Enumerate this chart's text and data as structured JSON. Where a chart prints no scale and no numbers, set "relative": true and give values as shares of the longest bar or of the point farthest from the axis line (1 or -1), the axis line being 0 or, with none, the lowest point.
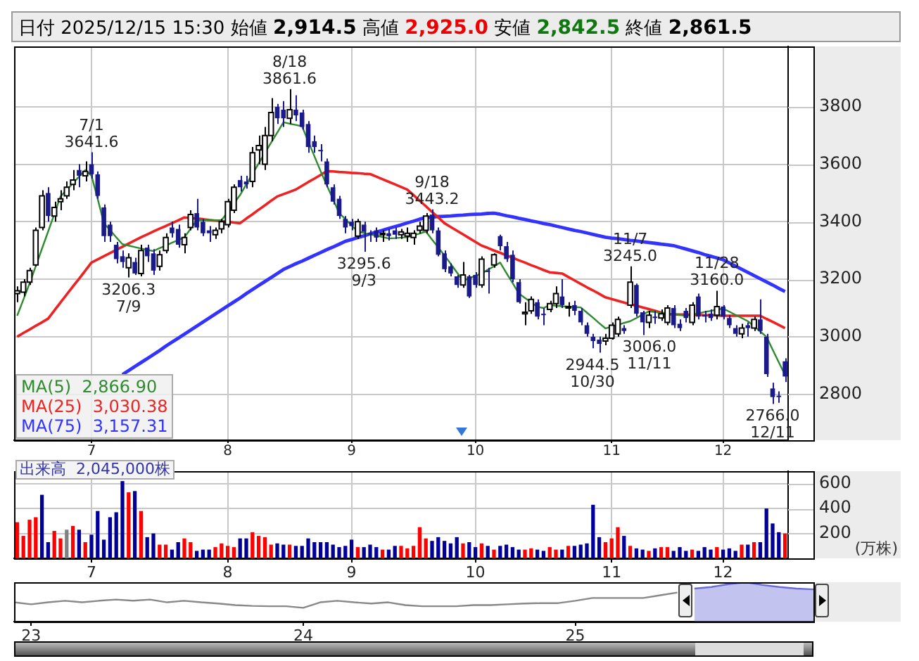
{
  "chart_data": [
    {
      "type": "candlestick",
      "title": "日付 2025/12/15 15:30 始値 2,914.5 高値 2,925.0 安値 2,842.5 終値 2,861.5",
      "categories": [
        null,
        null,
        null,
        null,
        null,
        null,
        null,
        null,
        null,
        null,
        null,
        null,
        "7",
        null,
        null,
        null,
        null,
        null,
        null,
        null,
        null,
        null,
        null,
        null,
        null,
        null,
        null,
        null,
        null,
        null,
        null,
        null,
        null,
        null,
        "8",
        null,
        null,
        null,
        null,
        null,
        null,
        null,
        null,
        null,
        null,
        null,
        null,
        null,
        null,
        null,
        null,
        null,
        null,
        null,
        "9",
        null,
        null,
        null,
        null,
        null,
        null,
        null,
        null,
        null,
        null,
        null,
        null,
        null,
        null,
        null,
        null,
        null,
        null,
        null,
        "10",
        null,
        null,
        null,
        null,
        null,
        null,
        null,
        null,
        null,
        null,
        null,
        null,
        null,
        null,
        null,
        null,
        null,
        null,
        null,
        null,
        null,
        "11",
        null,
        null,
        null,
        null,
        null,
        null,
        null,
        null,
        null,
        null,
        null,
        null,
        null,
        null,
        null,
        null,
        null,
        "12",
        null,
        null,
        null,
        null,
        null,
        null,
        null,
        null,
        null,
        null
      ],
      "ohlc": [
        [
          3150,
          3175,
          3120,
          3160
        ],
        [
          3155,
          3200,
          3140,
          3190
        ],
        [
          3190,
          3240,
          3180,
          3230
        ],
        [
          3250,
          3380,
          3245,
          3370
        ],
        [
          3380,
          3510,
          3370,
          3490
        ],
        [
          3500,
          3520,
          3400,
          3420
        ],
        [
          3420,
          3470,
          3400,
          3450
        ],
        [
          3470,
          3510,
          3440,
          3480
        ],
        [
          3490,
          3540,
          3480,
          3520
        ],
        [
          3530,
          3580,
          3510,
          3545
        ],
        [
          3580,
          3600,
          3520,
          3560
        ],
        [
          3560,
          3610,
          3540,
          3575
        ],
        [
          3600,
          3641.6,
          3550,
          3565
        ],
        [
          3565,
          3575,
          3480,
          3490
        ],
        [
          3450,
          3460,
          3330,
          3350
        ],
        [
          3390,
          3400,
          3330,
          3350
        ],
        [
          3320,
          3330,
          3255,
          3270
        ],
        [
          3280,
          3300,
          3240,
          3260
        ],
        [
          3240,
          3290,
          3206.3,
          3275
        ],
        [
          3260,
          3275,
          3215,
          3220
        ],
        [
          3220,
          3320,
          3210,
          3300
        ],
        [
          3310,
          3320,
          3260,
          3280
        ],
        [
          3290,
          3305,
          3215,
          3230
        ],
        [
          3245,
          3300,
          3230,
          3285
        ],
        [
          3300,
          3360,
          3290,
          3345
        ],
        [
          3380,
          3400,
          3345,
          3360
        ],
        [
          3375,
          3390,
          3310,
          3320
        ],
        [
          3320,
          3360,
          3290,
          3345
        ],
        [
          3380,
          3440,
          3370,
          3425
        ],
        [
          3430,
          3480,
          3370,
          3380
        ],
        [
          3400,
          3410,
          3350,
          3360
        ],
        [
          3370,
          3385,
          3330,
          3360
        ],
        [
          3355,
          3380,
          3340,
          3370
        ],
        [
          3375,
          3410,
          3360,
          3400
        ],
        [
          3390,
          3480,
          3380,
          3470
        ],
        [
          3440,
          3530,
          3430,
          3520
        ],
        [
          3545,
          3560,
          3505,
          3520
        ],
        [
          3540,
          3560,
          3515,
          3530
        ],
        [
          3540,
          3660,
          3520,
          3640
        ],
        [
          3650,
          3700,
          3600,
          3665
        ],
        [
          3600,
          3730,
          3580,
          3700
        ],
        [
          3700,
          3830,
          3680,
          3780
        ],
        [
          3800,
          3810,
          3740,
          3760
        ],
        [
          3790,
          3820,
          3730,
          3760
        ],
        [
          3760,
          3861.6,
          3740,
          3790
        ],
        [
          3790,
          3840,
          3750,
          3770
        ],
        [
          3780,
          3790,
          3720,
          3730
        ],
        [
          3740,
          3750,
          3640,
          3660
        ],
        [
          3680,
          3700,
          3640,
          3660
        ],
        [
          3650,
          3670,
          3610,
          3645
        ],
        [
          3610,
          3620,
          3520,
          3530
        ],
        [
          3520,
          3530,
          3460,
          3470
        ],
        [
          3480,
          3490,
          3410,
          3420
        ],
        [
          3410,
          3420,
          3360,
          3380
        ],
        [
          3400,
          3410,
          3370,
          3385
        ],
        [
          3350,
          3410,
          3340,
          3400
        ],
        [
          3390,
          3400,
          3295.6,
          3365
        ],
        [
          3360,
          3370,
          3330,
          3355
        ],
        [
          3370,
          3380,
          3330,
          3345
        ],
        [
          3355,
          3370,
          3330,
          3355
        ],
        [
          3360,
          3375,
          3335,
          3350
        ],
        [
          3370,
          3380,
          3340,
          3355
        ],
        [
          3355,
          3375,
          3340,
          3365
        ],
        [
          3350,
          3380,
          3330,
          3360
        ],
        [
          3345,
          3370,
          3320,
          3360
        ],
        [
          3370,
          3400,
          3360,
          3385
        ],
        [
          3370,
          3430,
          3360,
          3420
        ],
        [
          3425,
          3443.2,
          3360,
          3370
        ],
        [
          3370,
          3380,
          3280,
          3285
        ],
        [
          3290,
          3300,
          3225,
          3235
        ],
        [
          3245,
          3255,
          3210,
          3220
        ],
        [
          3210,
          3215,
          3170,
          3180
        ],
        [
          3180,
          3260,
          3170,
          3215
        ],
        [
          3210,
          3215,
          3135,
          3140
        ],
        [
          3215,
          3225,
          3170,
          3180
        ],
        [
          3180,
          3280,
          3170,
          3270
        ],
        [
          3230,
          3240,
          3150,
          3225
        ],
        [
          3250,
          3290,
          3240,
          3285
        ],
        [
          3350,
          3355,
          3300,
          3315
        ],
        [
          3315,
          3330,
          3260,
          3270
        ],
        [
          3285,
          3300,
          3190,
          3200
        ],
        [
          3190,
          3200,
          3115,
          3120
        ],
        [
          3080,
          3120,
          3040,
          3085
        ],
        [
          3090,
          3140,
          3080,
          3130
        ],
        [
          3120,
          3130,
          3060,
          3070
        ],
        [
          3080,
          3100,
          3040,
          3075
        ],
        [
          3095,
          3125,
          3085,
          3115
        ],
        [
          3115,
          3175,
          3100,
          3150
        ],
        [
          3140,
          3200,
          3100,
          3110
        ],
        [
          3100,
          3120,
          3070,
          3100
        ],
        [
          3110,
          3125,
          3075,
          3090
        ],
        [
          3090,
          3100,
          3040,
          3050
        ],
        [
          3040,
          3050,
          3000,
          3010
        ],
        [
          3000,
          3010,
          2960,
          2985
        ],
        [
          2990,
          3000,
          2944.5,
          2975
        ],
        [
          2985,
          3010,
          2970,
          2995
        ],
        [
          2995,
          3050,
          2990,
          3040
        ],
        [
          3010,
          3070,
          3000,
          3060
        ],
        [
          3030,
          3040,
          3010,
          3020
        ],
        [
          3110,
          3245,
          3100,
          3190
        ],
        [
          3180,
          3185,
          3070,
          3080
        ],
        [
          3085,
          3090,
          3006,
          3050
        ],
        [
          3050,
          3090,
          3030,
          3075
        ],
        [
          3070,
          3090,
          3045,
          3065
        ],
        [
          3065,
          3095,
          3055,
          3080
        ],
        [
          3050,
          3110,
          3040,
          3100
        ],
        [
          3100,
          3110,
          3030,
          3040
        ],
        [
          3045,
          3060,
          3020,
          3030
        ],
        [
          3090,
          3100,
          3050,
          3065
        ],
        [
          3050,
          3120,
          3040,
          3110
        ],
        [
          3140,
          3150,
          3060,
          3070
        ],
        [
          3075,
          3090,
          3050,
          3070
        ],
        [
          3080,
          3095,
          3055,
          3065
        ],
        [
          3075,
          3160,
          3060,
          3105
        ],
        [
          3105,
          3110,
          3060,
          3070
        ],
        [
          3065,
          3075,
          3030,
          3040
        ],
        [
          3030,
          3040,
          3000,
          3010
        ],
        [
          3010,
          3045,
          2995,
          3030
        ],
        [
          3040,
          3050,
          3000,
          3030
        ],
        [
          3030,
          3070,
          3020,
          3060
        ],
        [
          3060,
          3130,
          3010,
          3020
        ],
        [
          3000,
          3010,
          2860,
          2870
        ],
        [
          2820,
          2840,
          2766,
          2790
        ],
        [
          2795,
          2810,
          2770,
          2790
        ],
        [
          2914.5,
          2925,
          2842.5,
          2861.5
        ]
      ],
      "series": [
        {
          "type": "line",
          "name": "MA(5)  2,866.90",
          "color": "#2e8b2e",
          "values": [
            3073,
            3129,
            3185,
            3245,
            3306,
            3366,
            3427,
            3488,
            3511,
            3534,
            3557,
            3580,
            3560,
            3480,
            3395,
            3371,
            3346,
            3322,
            3317,
            3312,
            3307,
            3302,
            3298,
            3308,
            3317,
            3327,
            3336,
            3346,
            3375,
            3405,
            3405,
            3405,
            3405,
            3405,
            3434,
            3464,
            3493,
            3530,
            3566,
            3603,
            3639,
            3675,
            3710,
            3746,
            3741,
            3737,
            3732,
            3680,
            3628,
            3576,
            3527,
            3479,
            3430,
            3409,
            3387,
            3366,
            3361,
            3356,
            3352,
            3347,
            3342,
            3343,
            3345,
            3346,
            3353,
            3359,
            3366,
            3338,
            3311,
            3283,
            3254,
            3224,
            3195,
            3203,
            3212,
            3220,
            3233,
            3245,
            3258,
            3222,
            3187,
            3151,
            3135,
            3120,
            3104,
            3100,
            3110,
            3108,
            3106,
            3105,
            3103,
            3102,
            3084,
            3066,
            3047,
            3029,
            3035,
            3041,
            3048,
            3054,
            3065,
            3077,
            3088,
            3086,
            3083,
            3081,
            3078,
            3076,
            3073,
            3077,
            3081,
            3086,
            3090,
            3094,
            3098,
            3087,
            3076,
            3065,
            3054,
            3036,
            3018,
            3000,
            2955,
            2911,
            2867
          ]
        },
        {
          "type": "line",
          "name": "MA(25)  3,030.38",
          "color": "#ee2222",
          "values": [
            3000,
            3013,
            3025,
            3038,
            3050,
            3063,
            3091,
            3119,
            3147,
            3175,
            3202,
            3230,
            3258,
            3269,
            3280,
            3291,
            3302,
            3313,
            3324,
            3335,
            3346,
            3356,
            3366,
            3376,
            3385,
            3395,
            3405,
            3415,
            3413,
            3411,
            3409,
            3406,
            3404,
            3402,
            3400,
            3397,
            3395,
            3411,
            3426,
            3442,
            3457,
            3473,
            3488,
            3496,
            3504,
            3512,
            3525,
            3538,
            3550,
            3563,
            3576,
            3575,
            3573,
            3572,
            3570,
            3569,
            3567,
            3566,
            3557,
            3548,
            3539,
            3530,
            3521,
            3512,
            3493,
            3473,
            3454,
            3434,
            3415,
            3395,
            3382,
            3369,
            3356,
            3343,
            3330,
            3317,
            3309,
            3300,
            3292,
            3283,
            3275,
            3266,
            3258,
            3249,
            3241,
            3232,
            3224,
            3222,
            3220,
            3208,
            3196,
            3184,
            3172,
            3161,
            3149,
            3137,
            3131,
            3125,
            3119,
            3113,
            3108,
            3102,
            3096,
            3090,
            3084,
            3078,
            3078,
            3077,
            3077,
            3076,
            3076,
            3075,
            3075,
            3074,
            3073,
            3073,
            3073,
            3073,
            3073,
            3073,
            3073,
            3062,
            3052,
            3041,
            3030
          ]
        },
        {
          "type": "line",
          "name": "MA(75)  3,157.31",
          "color": "#3333ff",
          "values": [
            null,
            null,
            null,
            null,
            null,
            null,
            null,
            null,
            null,
            null,
            null,
            null,
            null,
            null,
            null,
            null,
            null,
            2868,
            2882,
            2896,
            2910,
            2924,
            2938,
            2952,
            2967,
            2981,
            2995,
            3009,
            3023,
            3037,
            3051,
            3065,
            3079,
            3093,
            3107,
            3121,
            3135,
            3150,
            3164,
            3178,
            3192,
            3206,
            3220,
            3234,
            3244,
            3254,
            3263,
            3273,
            3283,
            3293,
            3303,
            3312,
            3322,
            3332,
            3338,
            3345,
            3351,
            3358,
            3364,
            3370,
            3377,
            3383,
            3389,
            3396,
            3402,
            3409,
            3415,
            3416,
            3418,
            3419,
            3420,
            3422,
            3423,
            3425,
            3426,
            3427,
            3429,
            3430,
            3426,
            3421,
            3417,
            3412,
            3408,
            3403,
            3399,
            3394,
            3390,
            3385,
            3380,
            3375,
            3370,
            3366,
            3361,
            3356,
            3351,
            3346,
            3343,
            3341,
            3338,
            3335,
            3333,
            3330,
            3328,
            3325,
            3322,
            3320,
            3317,
            3311,
            3305,
            3299,
            3293,
            3286,
            3280,
            3274,
            3268,
            3257,
            3246,
            3235,
            3224,
            3213,
            3202,
            3191,
            3180,
            3168,
            3157
          ]
        }
      ],
      "ylim": [
        2640,
        4010
      ],
      "yticks": [
        2800,
        3000,
        3200,
        3400,
        3600,
        3800
      ],
      "grid": true,
      "legend": "bottom left",
      "annotations": [
        {
          "text": "7/1\n3641.6",
          "y": 3641.6
        },
        {
          "text": "3206.3\n7/9",
          "y": 3206.3
        },
        {
          "text": "8/18\n3861.6",
          "y": 3861.6
        },
        {
          "text": "3295.6\n9/3",
          "y": 3295.6
        },
        {
          "text": "9/18\n3443.2",
          "y": 3443.2
        },
        {
          "text": "2944.5\n10/30",
          "y": 2944.5
        },
        {
          "text": "11/7\n3245.0",
          "y": 3245
        },
        {
          "text": "3006.0\n11/11",
          "y": 3006
        },
        {
          "text": "11/28\n3160.0",
          "y": 3160
        },
        {
          "text": "2766.0\n12/11",
          "y": 2766
        }
      ]
    },
    {
      "type": "bar",
      "title": "出来高  2,045,000株",
      "ylabel": "(万株)",
      "categories": [
        null,
        null,
        null,
        null,
        null,
        null,
        null,
        null,
        null,
        null,
        null,
        null,
        "7",
        null,
        null,
        null,
        null,
        null,
        null,
        null,
        null,
        null,
        null,
        null,
        null,
        null,
        null,
        null,
        null,
        null,
        null,
        null,
        null,
        null,
        "8",
        null,
        null,
        null,
        null,
        null,
        null,
        null,
        null,
        null,
        null,
        null,
        null,
        null,
        null,
        null,
        null,
        null,
        null,
        null,
        "9",
        null,
        null,
        null,
        null,
        null,
        null,
        null,
        null,
        null,
        null,
        null,
        null,
        null,
        null,
        null,
        null,
        null,
        null,
        null,
        "10",
        null,
        null,
        null,
        null,
        null,
        null,
        null,
        null,
        null,
        null,
        null,
        null,
        null,
        null,
        null,
        null,
        null,
        null,
        null,
        null,
        null,
        "11",
        null,
        null,
        null,
        null,
        null,
        null,
        null,
        null,
        null,
        null,
        null,
        null,
        null,
        null,
        null,
        null,
        null,
        "12",
        null,
        null,
        null,
        null,
        null,
        null,
        null,
        null,
        null,
        null
      ],
      "values": [
        290,
        180,
        310,
        330,
        510,
        130,
        220,
        160,
        230,
        260,
        230,
        130,
        190,
        380,
        150,
        330,
        370,
        620,
        530,
        540,
        380,
        170,
        200,
        110,
        110,
        70,
        130,
        160,
        130,
        60,
        70,
        70,
        90,
        120,
        100,
        90,
        160,
        160,
        210,
        180,
        170,
        110,
        120,
        110,
        110,
        100,
        100,
        160,
        130,
        130,
        130,
        110,
        90,
        100,
        150,
        90,
        90,
        110,
        90,
        70,
        70,
        100,
        100,
        80,
        100,
        250,
        160,
        140,
        170,
        140,
        120,
        170,
        120,
        130,
        90,
        120,
        100,
        70,
        100,
        110,
        90,
        70,
        70,
        80,
        70,
        60,
        90,
        70,
        70,
        100,
        100,
        110,
        120,
        430,
        170,
        130,
        160,
        250,
        180,
        100,
        80,
        70,
        60,
        80,
        90,
        90,
        60,
        90,
        60,
        70,
        60,
        90,
        70,
        90,
        70,
        80,
        60,
        110,
        110,
        130,
        130,
        400,
        280,
        210,
        200
      ],
      "colors": [
        "#ff0000",
        "#ff0000",
        "#ff0000",
        "#ff0000",
        "#000099",
        "#000099",
        "#ff0000",
        "#ff0000",
        "#808080",
        "#ff0000",
        "#000099",
        "#ff0000",
        "#000099",
        "#000099",
        "#000099",
        "#000099",
        "#000099",
        "#000099",
        "#ff0000",
        "#000099",
        "#ff0000",
        "#000099",
        "#000099",
        "#ff0000",
        "#ff0000",
        "#000099",
        "#000099",
        "#ff0000",
        "#ff0000",
        "#000099",
        "#000099",
        "#000099",
        "#ff0000",
        "#ff0000",
        "#ff0000",
        "#ff0000",
        "#000099",
        "#000099",
        "#ff0000",
        "#ff0000",
        "#ff0000",
        "#ff0000",
        "#000099",
        "#000099",
        "#ff0000",
        "#000099",
        "#000099",
        "#000099",
        "#000099",
        "#000099",
        "#000099",
        "#000099",
        "#000099",
        "#000099",
        "#000099",
        "#ff0000",
        "#000099",
        "#000099",
        "#000099",
        "#ff0000",
        "#000099",
        "#000099",
        "#ff0000",
        "#ff0000",
        "#ff0000",
        "#ff0000",
        "#ff0000",
        "#000099",
        "#000099",
        "#000099",
        "#000099",
        "#000099",
        "#ff0000",
        "#000099",
        "#000099",
        "#ff0000",
        "#000099",
        "#ff0000",
        "#000099",
        "#000099",
        "#000099",
        "#000099",
        "#ff0000",
        "#ff0000",
        "#000099",
        "#000099",
        "#ff0000",
        "#ff0000",
        "#000099",
        "#ff0000",
        "#000099",
        "#000099",
        "#000099",
        "#000099",
        "#000099",
        "#ff0000",
        "#ff0000",
        "#ff0000",
        "#000099",
        "#ff0000",
        "#000099",
        "#000099",
        "#ff0000",
        "#000099",
        "#ff0000",
        "#ff0000",
        "#000099",
        "#000099",
        "#000099",
        "#ff0000",
        "#000099",
        "#000099",
        "#000099",
        "#ff0000",
        "#000099",
        "#000099",
        "#000099",
        "#ff0000",
        "#000099",
        "#ff0000",
        "#000099",
        "#000099",
        "#000099",
        "#000099",
        "#ff0000"
      ],
      "ylim": [
        0,
        700
      ],
      "yticks": [
        200,
        400,
        600
      ],
      "grid": true
    },
    {
      "type": "line",
      "relative": true,
      "categories": [
        null,
        "23",
        null,
        null,
        null,
        null,
        null,
        null,
        null,
        null,
        null,
        null,
        null,
        null,
        null,
        null,
        null,
        "24",
        null,
        null,
        null,
        null,
        null,
        null,
        null,
        null,
        null,
        null,
        null,
        null,
        null,
        null,
        null,
        "25",
        null,
        null,
        null,
        null,
        null,
        null,
        null,
        null,
        null,
        null,
        null,
        null,
        null,
        null
      ],
      "series": [
        {
          "type": "line",
          "color": "#888888",
          "values": [
            0.49,
            0.44,
            0.49,
            0.53,
            0.49,
            0.53,
            0.56,
            0.53,
            0.56,
            0.49,
            0.53,
            0.49,
            0.46,
            0.42,
            0.4,
            0.39,
            0.39,
            0.35,
            0.49,
            0.53,
            0.49,
            0.46,
            0.49,
            0.42,
            0.39,
            0.39,
            0.39,
            0.42,
            0.42,
            0.44,
            0.46,
            0.47,
            0.47,
            0.53,
            0.6,
            0.6,
            0.6,
            0.6,
            0.67,
            0.74,
            null,
            null,
            null,
            null,
            null,
            null,
            null,
            null
          ]
        },
        {
          "type": "area",
          "color": "#6a6ad8",
          "values": [
            null,
            null,
            null,
            null,
            null,
            null,
            null,
            null,
            null,
            null,
            null,
            null,
            null,
            null,
            null,
            null,
            null,
            null,
            null,
            null,
            null,
            null,
            null,
            null,
            null,
            null,
            null,
            null,
            null,
            null,
            null,
            null,
            null,
            null,
            null,
            null,
            null,
            null,
            null,
            null,
            0.84,
            0.88,
            0.95,
            1,
            0.93,
            0.88,
            0.84,
            0.82
          ]
        }
      ]
    }
  ]
}
